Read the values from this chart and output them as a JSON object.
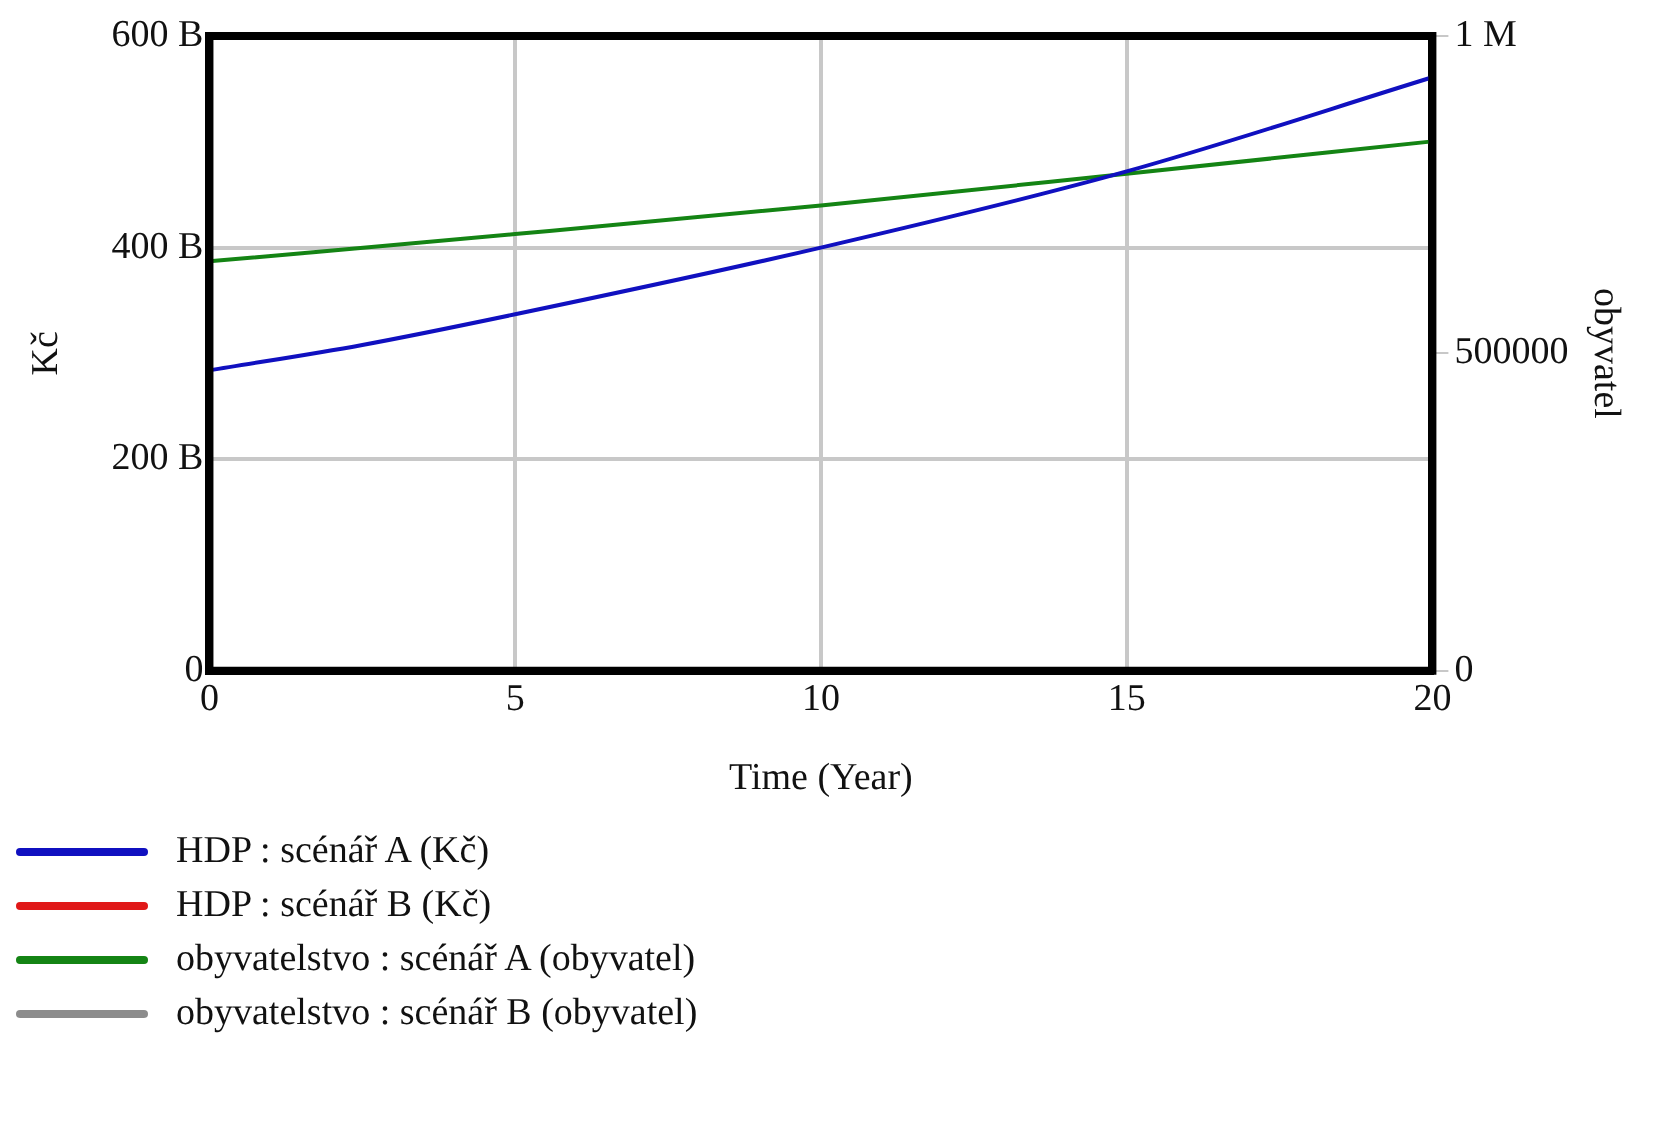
{
  "chart_data": {
    "type": "line",
    "xlabel": "Time (Year)",
    "ylabel": "Kč",
    "y2label": "obyvatel",
    "x": [
      0,
      2.5,
      5,
      10,
      15,
      20
    ],
    "xlim": [
      0,
      20
    ],
    "xticks": [
      0,
      5,
      10,
      15,
      20
    ],
    "ylim": [
      0,
      600000000000
    ],
    "yticks": [
      0,
      {
        "value": 200000000000,
        "label": "200 B"
      },
      {
        "value": 400000000000,
        "label": "400 B"
      },
      {
        "value": 600000000000,
        "label": "600 B"
      }
    ],
    "y2lim": [
      0,
      1000000
    ],
    "y2ticks": [
      0,
      500000,
      {
        "value": 1000000,
        "label": "1 M"
      }
    ],
    "grid": true,
    "legend": "bottom",
    "marker": "none",
    "line_style": "solid",
    "series": [
      {
        "name": "HDP : scénář A (Kč)",
        "color": "#1010c0",
        "values": [
          284000000000,
          308000000000,
          337000000000,
          400000000000,
          472000000000,
          561000000000
        ]
      },
      {
        "name": "HDP : scénář B (Kč)",
        "color": "#e01818",
        "values": [
          null,
          null,
          null,
          null,
          null,
          null
        ]
      },
      {
        "name": "obyvatelstvo : scénář A (obyvatel)",
        "color": "#148414",
        "axis": "y2",
        "x": [
          0,
          5,
          10,
          15,
          20
        ],
        "values": [
          645000,
          688000,
          733000,
          783000,
          834000
        ]
      },
      {
        "name": "obyvatelstvo : scénář B (obyvatel)",
        "color": "#8c8c8c",
        "axis": "y2",
        "values": [
          null,
          null,
          null,
          null,
          null,
          null
        ]
      }
    ]
  }
}
